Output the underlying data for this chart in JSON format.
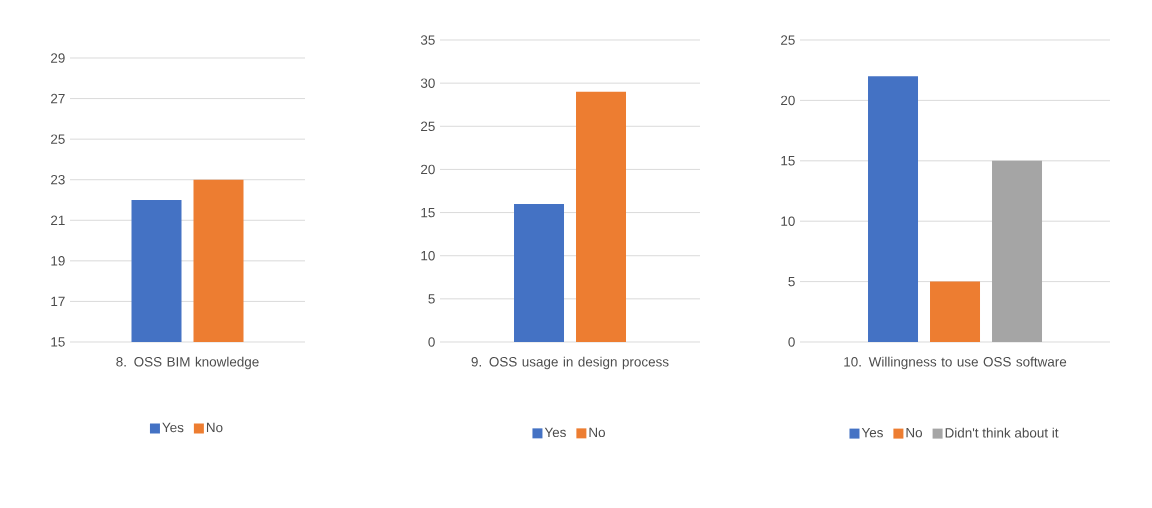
{
  "chart_data": [
    {
      "type": "bar",
      "categories": [
        "8. OSS BIM knowledge"
      ],
      "series": [
        {
          "name": "Yes",
          "color": "#4472c4",
          "values": [
            22
          ]
        },
        {
          "name": "No",
          "color": "#ed7d31",
          "values": [
            23
          ]
        }
      ],
      "ylim": [
        15,
        29
      ],
      "yticks": [
        15,
        17,
        19,
        21,
        23,
        25,
        27,
        29
      ],
      "grid": "y",
      "legend": "bottom"
    },
    {
      "type": "bar",
      "categories": [
        "9. OSS usage in design process"
      ],
      "series": [
        {
          "name": "Yes",
          "color": "#4472c4",
          "values": [
            16
          ]
        },
        {
          "name": "No",
          "color": "#ed7d31",
          "values": [
            29
          ]
        }
      ],
      "ylim": [
        0,
        35
      ],
      "yticks": [
        0,
        5,
        10,
        15,
        20,
        25,
        30,
        35
      ],
      "grid": "y",
      "legend": "bottom"
    },
    {
      "type": "bar",
      "categories": [
        "10. Willingness to use OSS software"
      ],
      "series": [
        {
          "name": "Yes",
          "color": "#4472c4",
          "values": [
            22
          ]
        },
        {
          "name": "No",
          "color": "#ed7d31",
          "values": [
            5
          ]
        },
        {
          "name": "Didn't think about it",
          "color": "#a5a5a5",
          "values": [
            15
          ]
        }
      ],
      "ylim": [
        0,
        25
      ],
      "yticks": [
        0,
        5,
        10,
        15,
        20,
        25
      ],
      "grid": "y",
      "legend": "bottom"
    }
  ]
}
